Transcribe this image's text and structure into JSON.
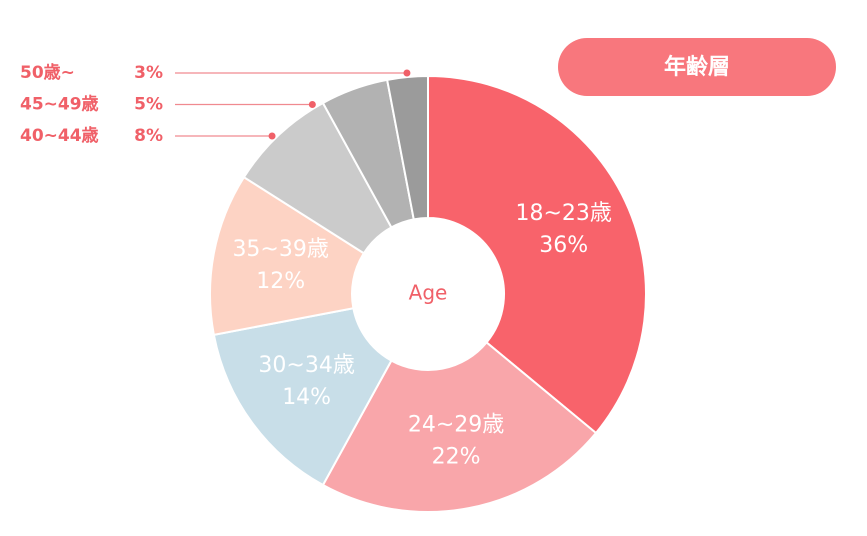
{
  "chart_data": {
    "type": "donut",
    "badge": "年齢層",
    "center_label": "Age",
    "categories": [
      "18~23歳",
      "24~29歳",
      "30~34歳",
      "35~39歳",
      "40~44歳",
      "45~49歳",
      "50歳~"
    ],
    "values": [
      36,
      22,
      14,
      12,
      8,
      5,
      3
    ],
    "value_labels": [
      "36%",
      "22%",
      "14%",
      "12%",
      "8%",
      "5%",
      "3%"
    ],
    "colors": [
      "#f8636b",
      "#f9a6aa",
      "#c8dee8",
      "#fdd3c4",
      "#cbcbcb",
      "#b2b2b2",
      "#9b9b9b"
    ]
  }
}
